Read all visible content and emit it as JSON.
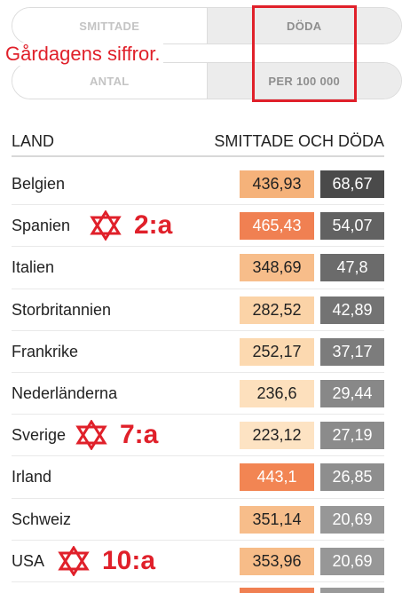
{
  "toggles": {
    "metric": {
      "left": "SMITTADE",
      "right": "DÖDA",
      "active": "right"
    },
    "scale": {
      "left": "ANTAL",
      "right": "PER 100 000",
      "active": "right"
    }
  },
  "annotation": {
    "caption": "Gårdagens siffror.",
    "color": "#e0202a"
  },
  "table": {
    "header": {
      "country": "LAND",
      "values": "SMITTADE OCH DÖDA"
    },
    "rows": [
      {
        "country": "Belgien",
        "cases": "436,93",
        "deaths": "68,67",
        "case_color": "#f5b27a",
        "case_text": "#222222",
        "death_color": "#4a4a4a",
        "rank": ""
      },
      {
        "country": "Spanien",
        "cases": "465,43",
        "deaths": "54,07",
        "case_color": "#f08052",
        "case_text": "#ffffff",
        "death_color": "#626262",
        "rank": "2:a"
      },
      {
        "country": "Italien",
        "cases": "348,69",
        "deaths": "47,8",
        "case_color": "#f7bd8a",
        "case_text": "#222222",
        "death_color": "#6b6b6b",
        "rank": ""
      },
      {
        "country": "Storbritannien",
        "cases": "282,52",
        "deaths": "42,89",
        "case_color": "#fbd3a7",
        "case_text": "#222222",
        "death_color": "#737373",
        "rank": ""
      },
      {
        "country": "Frankrike",
        "cases": "252,17",
        "deaths": "37,17",
        "case_color": "#fcd9b0",
        "case_text": "#222222",
        "death_color": "#7c7c7c",
        "rank": ""
      },
      {
        "country": "Nederländerna",
        "cases": "236,6",
        "deaths": "29,44",
        "case_color": "#fde0bd",
        "case_text": "#222222",
        "death_color": "#888888",
        "rank": ""
      },
      {
        "country": "Sverige",
        "cases": "223,12",
        "deaths": "27,19",
        "case_color": "#fde3c3",
        "case_text": "#222222",
        "death_color": "#8b8b8b",
        "rank": "7:a"
      },
      {
        "country": "Irland",
        "cases": "443,1",
        "deaths": "26,85",
        "case_color": "#f28553",
        "case_text": "#ffffff",
        "death_color": "#8e8e8e",
        "rank": ""
      },
      {
        "country": "Schweiz",
        "cases": "351,14",
        "deaths": "20,69",
        "case_color": "#f7bd8a",
        "case_text": "#222222",
        "death_color": "#979797",
        "rank": ""
      },
      {
        "country": "USA",
        "cases": "353,96",
        "deaths": "20,69",
        "case_color": "#f7bc88",
        "case_text": "#222222",
        "death_color": "#979797",
        "rank": "10:a"
      }
    ],
    "partial_row": {
      "case_color": "#f08052",
      "death_color": "#9a9a9a"
    }
  }
}
